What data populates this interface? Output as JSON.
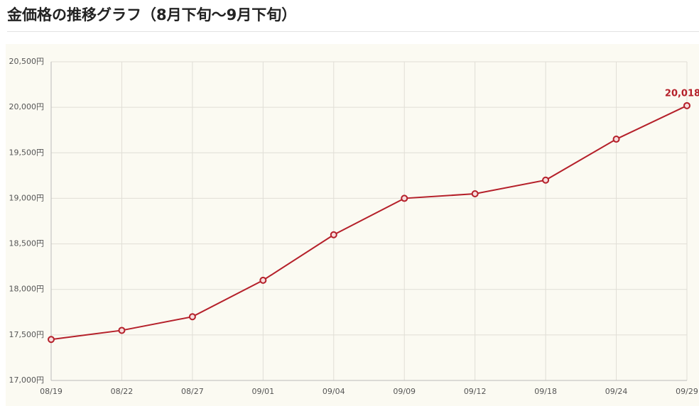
{
  "chart_data": {
    "type": "line",
    "title": "金価格の推移グラフ（8月下旬〜9月下旬）",
    "categories": [
      "08/19",
      "08/22",
      "08/27",
      "09/01",
      "09/04",
      "09/09",
      "09/12",
      "09/18",
      "09/24",
      "09/29"
    ],
    "series": [
      {
        "color": "#b5202a",
        "values": [
          17450,
          17550,
          17700,
          18100,
          18600,
          19000,
          19050,
          19200,
          19650,
          20018
        ],
        "value_labels": [
          null,
          null,
          null,
          null,
          null,
          null,
          null,
          null,
          null,
          "20,018"
        ]
      }
    ],
    "ylim": [
      17000,
      20500
    ],
    "yticks": [
      {
        "value": 17000,
        "label": "17,000円"
      },
      {
        "value": 17500,
        "label": "17,500円"
      },
      {
        "value": 18000,
        "label": "18,000円"
      },
      {
        "value": 18500,
        "label": "18,500円"
      },
      {
        "value": 19000,
        "label": "19,000円"
      },
      {
        "value": 19500,
        "label": "19,500円"
      },
      {
        "value": 20000,
        "label": "20,000円"
      },
      {
        "value": 20500,
        "label": "20,500円"
      }
    ],
    "grid": true
  }
}
